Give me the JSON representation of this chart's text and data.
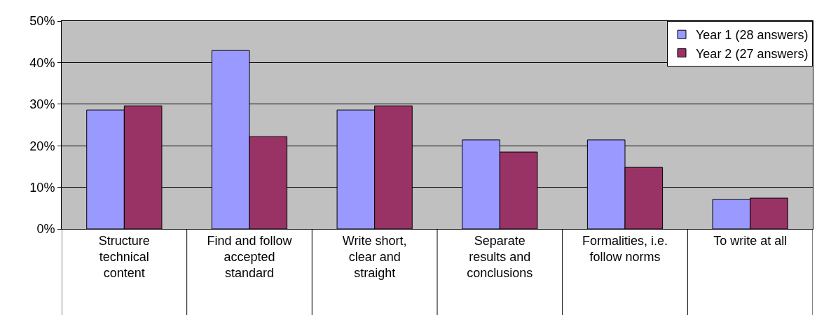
{
  "chart_data": {
    "type": "bar",
    "categories": [
      "Structure\ntechnical\ncontent",
      "Find and follow\naccepted\nstandard",
      "Write short,\nclear and\nstraight",
      "Separate\nresults and\nconclusions",
      "Formalities, i.e.\nfollow norms",
      "To write at all"
    ],
    "series": [
      {
        "name": "Year 1 (28 answers)",
        "color": "#9999ff",
        "values": [
          28.6,
          42.9,
          28.6,
          21.4,
          21.4,
          7.1
        ]
      },
      {
        "name": "Year 2 (27 answers)",
        "color": "#993366",
        "values": [
          29.6,
          22.2,
          29.6,
          18.5,
          14.8,
          7.4
        ]
      }
    ],
    "ylim": [
      0,
      50
    ],
    "yticks": [
      {
        "value": 0,
        "label": "0%"
      },
      {
        "value": 10,
        "label": "10%"
      },
      {
        "value": 20,
        "label": "20%"
      },
      {
        "value": 30,
        "label": "30%"
      },
      {
        "value": 40,
        "label": "40%"
      },
      {
        "value": 50,
        "label": "50%"
      }
    ],
    "grid": true,
    "legend": "top right"
  }
}
